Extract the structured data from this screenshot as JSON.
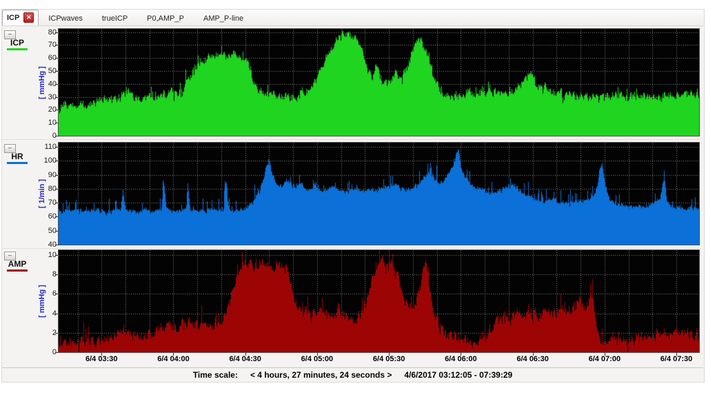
{
  "tabs": [
    {
      "label": "ICP",
      "active": true,
      "closable": true
    },
    {
      "label": "ICPwaves",
      "active": false,
      "closable": false
    },
    {
      "label": "trueICP",
      "active": false,
      "closable": false
    },
    {
      "label": "P0,AMP_P",
      "active": false,
      "closable": false
    },
    {
      "label": "AMP_P-line",
      "active": false,
      "closable": false
    }
  ],
  "ui": {
    "minimize_glyph": "–",
    "close_glyph": "✕"
  },
  "colors": {
    "icp": "#1fd51f",
    "hr": "#0b70d8",
    "amp": "#9d0505",
    "axis_title": "#2626bd",
    "plot_bg": "#000000",
    "grid": "#d8d8d8"
  },
  "status_bar": {
    "label": "Time scale:",
    "scale": "< 4 hours, 27 minutes, 24 seconds >",
    "range": "4/6/2017 03:12:05 - 07:39:29"
  },
  "x_axis": {
    "start_min": 192.083,
    "end_min": 459.483,
    "minor_grid_step_min": 10,
    "tick_labels": [
      {
        "min": 210,
        "label": "6/4 03:30"
      },
      {
        "min": 240,
        "label": "6/4 04:00"
      },
      {
        "min": 270,
        "label": "6/4 04:30"
      },
      {
        "min": 300,
        "label": "6/4 05:00"
      },
      {
        "min": 330,
        "label": "6/4 05:30"
      },
      {
        "min": 360,
        "label": "6/4 06:00"
      },
      {
        "min": 390,
        "label": "6/4 06:30"
      },
      {
        "min": 420,
        "label": "6/4 07:00"
      },
      {
        "min": 450,
        "label": "6/4 07:30"
      }
    ]
  },
  "chart_data": [
    {
      "type": "area",
      "name": "ICP",
      "ylabel": "[ mmHg ]",
      "color": "#1fd51f",
      "ylim": [
        0,
        82.5
      ],
      "yticks": [
        0,
        10,
        20,
        30,
        40,
        50,
        60,
        70,
        80
      ],
      "x_unit": "minutes from 03:12:05",
      "keypoints": [
        [
          0,
          22
        ],
        [
          5,
          23
        ],
        [
          10,
          24
        ],
        [
          15,
          26
        ],
        [
          18,
          27
        ],
        [
          22,
          28
        ],
        [
          26,
          31
        ],
        [
          29,
          34
        ],
        [
          31,
          31
        ],
        [
          34,
          29
        ],
        [
          38,
          30
        ],
        [
          42,
          31
        ],
        [
          45,
          33
        ],
        [
          47,
          36
        ],
        [
          49,
          34
        ],
        [
          52,
          38
        ],
        [
          54,
          44
        ],
        [
          57,
          52
        ],
        [
          60,
          57
        ],
        [
          63,
          60
        ],
        [
          66,
          62
        ],
        [
          70,
          61
        ],
        [
          74,
          63
        ],
        [
          77,
          62
        ],
        [
          79,
          58
        ],
        [
          81,
          45
        ],
        [
          83,
          34
        ],
        [
          86,
          32
        ],
        [
          89,
          31
        ],
        [
          92,
          30
        ],
        [
          95,
          31
        ],
        [
          98,
          30
        ],
        [
          101,
          33
        ],
        [
          104,
          36
        ],
        [
          107,
          42
        ],
        [
          110,
          52
        ],
        [
          113,
          66
        ],
        [
          116,
          74
        ],
        [
          119,
          79
        ],
        [
          121,
          80
        ],
        [
          123,
          77
        ],
        [
          125,
          72
        ],
        [
          127,
          65
        ],
        [
          129,
          50
        ],
        [
          131,
          44
        ],
        [
          133,
          56
        ],
        [
          135,
          44
        ],
        [
          137,
          40
        ],
        [
          139,
          44
        ],
        [
          141,
          48
        ],
        [
          143,
          46
        ],
        [
          145,
          50
        ],
        [
          147,
          60
        ],
        [
          149,
          70
        ],
        [
          151,
          74
        ],
        [
          153,
          68
        ],
        [
          155,
          56
        ],
        [
          157,
          44
        ],
        [
          159,
          36
        ],
        [
          162,
          32
        ],
        [
          165,
          31
        ],
        [
          168,
          30
        ],
        [
          171,
          32
        ],
        [
          174,
          31
        ],
        [
          177,
          34
        ],
        [
          180,
          36
        ],
        [
          183,
          34
        ],
        [
          186,
          33
        ],
        [
          189,
          35
        ],
        [
          192,
          38
        ],
        [
          195,
          44
        ],
        [
          197,
          49
        ],
        [
          199,
          42
        ],
        [
          201,
          36
        ],
        [
          203,
          38
        ],
        [
          205,
          35
        ],
        [
          208,
          33
        ],
        [
          211,
          31
        ],
        [
          214,
          30
        ],
        [
          217,
          32
        ],
        [
          220,
          31
        ],
        [
          223,
          30
        ],
        [
          226,
          29
        ],
        [
          230,
          30
        ],
        [
          234,
          31
        ],
        [
          238,
          30
        ],
        [
          242,
          31
        ],
        [
          246,
          32
        ],
        [
          250,
          31
        ],
        [
          254,
          32
        ],
        [
          258,
          31
        ],
        [
          262,
          32
        ],
        [
          267,
          31
        ]
      ],
      "noise": {
        "band": 2.8,
        "spike_prob": 0.06,
        "spike_max": 9,
        "dip_prob": 0.05,
        "dip_max": 5
      }
    },
    {
      "type": "area",
      "name": "HR",
      "ylabel": "[ 1/min ]",
      "color": "#0b70d8",
      "ylim": [
        40,
        113
      ],
      "yticks": [
        40,
        50,
        60,
        70,
        80,
        90,
        100,
        110
      ],
      "x_unit": "minutes from 03:12:05",
      "keypoints": [
        [
          0,
          64
        ],
        [
          4,
          64
        ],
        [
          8,
          65
        ],
        [
          12,
          64
        ],
        [
          16,
          65
        ],
        [
          20,
          64
        ],
        [
          24,
          65
        ],
        [
          26,
          65
        ],
        [
          27,
          78
        ],
        [
          28,
          65
        ],
        [
          32,
          64
        ],
        [
          36,
          65
        ],
        [
          40,
          64
        ],
        [
          43,
          65
        ],
        [
          44,
          86
        ],
        [
          45,
          65
        ],
        [
          48,
          64
        ],
        [
          52,
          65
        ],
        [
          53,
          65
        ],
        [
          54,
          84
        ],
        [
          55,
          64
        ],
        [
          58,
          65
        ],
        [
          62,
          64
        ],
        [
          66,
          65
        ],
        [
          69,
          65
        ],
        [
          70,
          88
        ],
        [
          71,
          65
        ],
        [
          74,
          64
        ],
        [
          78,
          66
        ],
        [
          81,
          70
        ],
        [
          83,
          76
        ],
        [
          85,
          84
        ],
        [
          87,
          96
        ],
        [
          88,
          101
        ],
        [
          89,
          92
        ],
        [
          91,
          84
        ],
        [
          93,
          82
        ],
        [
          95,
          86
        ],
        [
          97,
          83
        ],
        [
          99,
          81
        ],
        [
          101,
          84
        ],
        [
          103,
          81
        ],
        [
          105,
          79
        ],
        [
          107,
          83
        ],
        [
          109,
          80
        ],
        [
          112,
          79
        ],
        [
          115,
          81
        ],
        [
          118,
          79
        ],
        [
          121,
          78
        ],
        [
          124,
          80
        ],
        [
          127,
          78
        ],
        [
          130,
          80
        ],
        [
          133,
          79
        ],
        [
          136,
          81
        ],
        [
          139,
          83
        ],
        [
          142,
          81
        ],
        [
          145,
          79
        ],
        [
          148,
          81
        ],
        [
          151,
          85
        ],
        [
          153,
          89
        ],
        [
          155,
          94
        ],
        [
          157,
          87
        ],
        [
          159,
          83
        ],
        [
          161,
          87
        ],
        [
          163,
          91
        ],
        [
          165,
          97
        ],
        [
          166,
          104
        ],
        [
          167,
          108
        ],
        [
          168,
          95
        ],
        [
          170,
          88
        ],
        [
          172,
          83
        ],
        [
          175,
          80
        ],
        [
          178,
          78
        ],
        [
          181,
          77
        ],
        [
          184,
          79
        ],
        [
          187,
          81
        ],
        [
          190,
          83
        ],
        [
          193,
          79
        ],
        [
          196,
          75
        ],
        [
          199,
          73
        ],
        [
          202,
          71
        ],
        [
          205,
          73
        ],
        [
          208,
          71
        ],
        [
          211,
          70
        ],
        [
          214,
          71
        ],
        [
          217,
          70
        ],
        [
          220,
          72
        ],
        [
          223,
          74
        ],
        [
          225,
          82
        ],
        [
          226,
          95
        ],
        [
          227,
          100
        ],
        [
          228,
          84
        ],
        [
          230,
          72
        ],
        [
          233,
          69
        ],
        [
          236,
          68
        ],
        [
          239,
          67
        ],
        [
          242,
          68
        ],
        [
          245,
          67
        ],
        [
          248,
          69
        ],
        [
          251,
          72
        ],
        [
          252,
          80
        ],
        [
          253,
          88
        ],
        [
          254,
          72
        ],
        [
          257,
          67
        ],
        [
          260,
          66
        ],
        [
          263,
          67
        ],
        [
          267,
          66
        ]
      ],
      "noise": {
        "band": 1.3,
        "spike_prob": 0.13,
        "spike_max": 10,
        "dip_prob": 0.05,
        "dip_max": 2.5
      }
    },
    {
      "type": "area",
      "name": "AMP",
      "ylabel": "[ mmHg ]",
      "color": "#9d0505",
      "ylim": [
        0,
        10.5
      ],
      "yticks": [
        0,
        2,
        4,
        6,
        8,
        10
      ],
      "x_unit": "minutes from 03:12:05",
      "keypoints": [
        [
          0,
          0.9
        ],
        [
          5,
          1.0
        ],
        [
          10,
          1.1
        ],
        [
          15,
          1.2
        ],
        [
          18,
          1.3
        ],
        [
          22,
          1.5
        ],
        [
          26,
          1.9
        ],
        [
          29,
          2.3
        ],
        [
          31,
          1.9
        ],
        [
          34,
          1.6
        ],
        [
          38,
          1.7
        ],
        [
          41,
          2.1
        ],
        [
          44,
          2.6
        ],
        [
          46,
          3.0
        ],
        [
          48,
          2.6
        ],
        [
          50,
          2.4
        ],
        [
          52,
          2.8
        ],
        [
          54,
          3.3
        ],
        [
          56,
          3.0
        ],
        [
          58,
          2.7
        ],
        [
          60,
          3.1
        ],
        [
          62,
          2.8
        ],
        [
          64,
          2.6
        ],
        [
          66,
          2.9
        ],
        [
          68,
          3.2
        ],
        [
          70,
          4.0
        ],
        [
          72,
          5.5
        ],
        [
          74,
          7.5
        ],
        [
          76,
          8.8
        ],
        [
          78,
          9.2
        ],
        [
          80,
          8.8
        ],
        [
          83,
          9.0
        ],
        [
          86,
          9.3
        ],
        [
          89,
          8.8
        ],
        [
          92,
          9.2
        ],
        [
          95,
          8.6
        ],
        [
          97,
          7.0
        ],
        [
          99,
          4.8
        ],
        [
          101,
          4.0
        ],
        [
          103,
          3.8
        ],
        [
          105,
          4.2
        ],
        [
          107,
          3.9
        ],
        [
          109,
          4.3
        ],
        [
          111,
          4.0
        ],
        [
          113,
          3.6
        ],
        [
          115,
          3.9
        ],
        [
          117,
          4.4
        ],
        [
          119,
          4.0
        ],
        [
          121,
          3.4
        ],
        [
          123,
          3.0
        ],
        [
          125,
          3.4
        ],
        [
          127,
          4.2
        ],
        [
          129,
          5.5
        ],
        [
          131,
          7.5
        ],
        [
          133,
          8.8
        ],
        [
          135,
          9.3
        ],
        [
          137,
          8.9
        ],
        [
          139,
          9.2
        ],
        [
          141,
          8.6
        ],
        [
          143,
          7.2
        ],
        [
          145,
          5.0
        ],
        [
          147,
          4.4
        ],
        [
          149,
          5.2
        ],
        [
          151,
          6.5
        ],
        [
          152,
          8.0
        ],
        [
          153,
          9.6
        ],
        [
          154,
          9.0
        ],
        [
          155,
          6.5
        ],
        [
          156,
          4.5
        ],
        [
          158,
          3.2
        ],
        [
          160,
          2.4
        ],
        [
          162,
          1.8
        ],
        [
          164,
          1.5
        ],
        [
          166,
          1.4
        ],
        [
          168,
          1.3
        ],
        [
          170,
          1.4
        ],
        [
          172,
          1.3
        ],
        [
          174,
          1.4
        ],
        [
          176,
          1.5
        ],
        [
          178,
          1.7
        ],
        [
          180,
          2.1
        ],
        [
          182,
          2.7
        ],
        [
          184,
          3.2
        ],
        [
          186,
          3.6
        ],
        [
          188,
          3.3
        ],
        [
          190,
          3.8
        ],
        [
          192,
          4.2
        ],
        [
          194,
          3.8
        ],
        [
          196,
          4.4
        ],
        [
          198,
          4.0
        ],
        [
          200,
          3.6
        ],
        [
          202,
          4.1
        ],
        [
          204,
          4.5
        ],
        [
          206,
          4.2
        ],
        [
          208,
          3.8
        ],
        [
          210,
          4.3
        ],
        [
          212,
          4.6
        ],
        [
          214,
          4.2
        ],
        [
          216,
          4.8
        ],
        [
          218,
          5.2
        ],
        [
          220,
          4.6
        ],
        [
          222,
          5.4
        ],
        [
          223,
          5.8
        ],
        [
          224,
          3.5
        ],
        [
          225,
          1.8
        ],
        [
          227,
          1.4
        ],
        [
          229,
          1.2
        ],
        [
          232,
          1.3
        ],
        [
          235,
          1.5
        ],
        [
          238,
          1.4
        ],
        [
          241,
          1.6
        ],
        [
          244,
          1.5
        ],
        [
          247,
          1.7
        ],
        [
          250,
          1.9
        ],
        [
          253,
          1.7
        ],
        [
          256,
          1.9
        ],
        [
          259,
          1.8
        ],
        [
          262,
          2.0
        ],
        [
          265,
          1.9
        ],
        [
          267.4,
          2.1
        ]
      ],
      "noise": {
        "band": 0.45,
        "spike_prob": 0.07,
        "spike_max": 1.5,
        "dip_prob": 0.05,
        "dip_max": 0.7
      }
    }
  ]
}
